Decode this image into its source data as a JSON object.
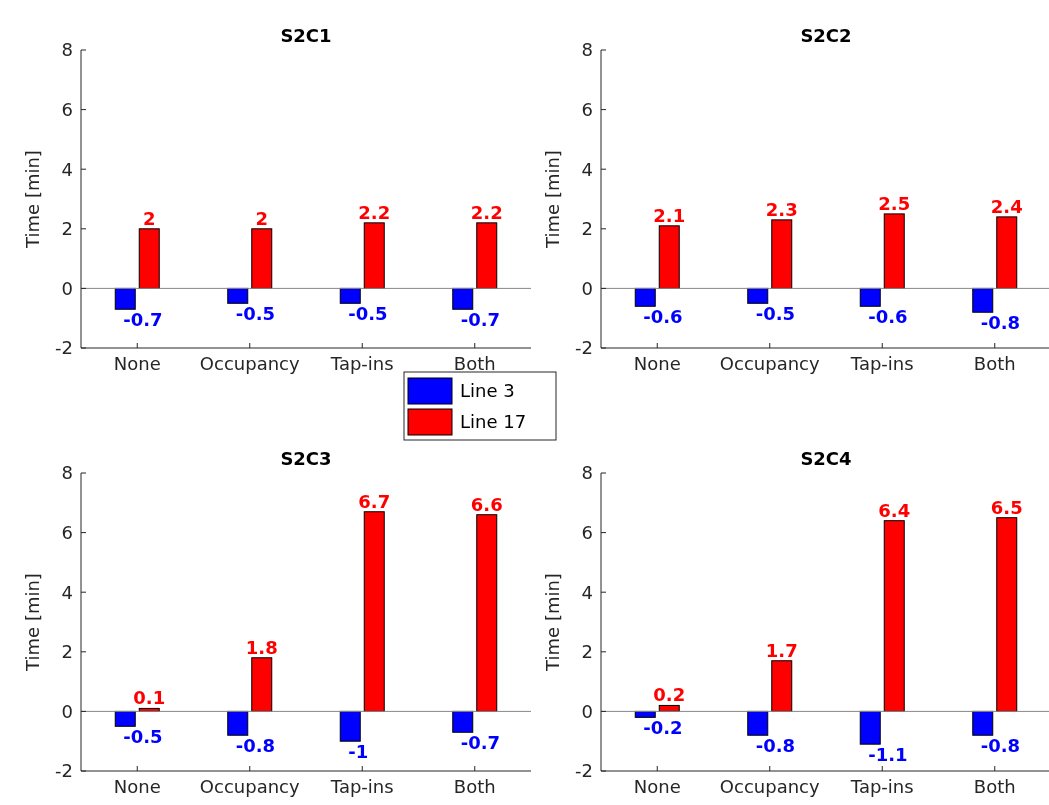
{
  "chart_data": [
    {
      "type": "bar",
      "title": "S2C1",
      "ylabel": "Time [min]",
      "categories": [
        "None",
        "Occupancy",
        "Tap-ins",
        "Both"
      ],
      "series": [
        {
          "name": "Line 3",
          "color": "#0000ff",
          "values": [
            -0.7,
            -0.5,
            -0.5,
            -0.7
          ]
        },
        {
          "name": "Line 17",
          "color": "#ff0000",
          "values": [
            2,
            2,
            2.2,
            2.2
          ]
        }
      ],
      "ylim": [
        -2,
        8
      ],
      "yticks": [
        -2,
        0,
        2,
        4,
        6,
        8
      ],
      "data_labels": true,
      "legend": "bottom right"
    },
    {
      "type": "bar",
      "title": "S2C2",
      "ylabel": "Time [min]",
      "categories": [
        "None",
        "Occupancy",
        "Tap-ins",
        "Both"
      ],
      "series": [
        {
          "color": "#0000ff",
          "values": [
            -0.6,
            -0.5,
            -0.6,
            -0.8
          ]
        },
        {
          "color": "#ff0000",
          "values": [
            2.1,
            2.3,
            2.5,
            2.4
          ]
        }
      ],
      "ylim": [
        -2,
        8
      ],
      "yticks": [
        -2,
        0,
        2,
        4,
        6,
        8
      ],
      "data_labels": true
    },
    {
      "type": "bar",
      "title": "S2C3",
      "ylabel": "Time [min]",
      "categories": [
        "None",
        "Occupancy",
        "Tap-ins",
        "Both"
      ],
      "series": [
        {
          "color": "#0000ff",
          "values": [
            -0.5,
            -0.8,
            -1,
            -0.7
          ]
        },
        {
          "color": "#ff0000",
          "values": [
            0.1,
            1.8,
            6.7,
            6.6
          ]
        }
      ],
      "ylim": [
        -2,
        8
      ],
      "yticks": [
        -2,
        0,
        2,
        4,
        6,
        8
      ],
      "data_labels": true
    },
    {
      "type": "bar",
      "title": "S2C4",
      "ylabel": "Time [min]",
      "categories": [
        "None",
        "Occupancy",
        "Tap-ins",
        "Both"
      ],
      "series": [
        {
          "color": "#0000ff",
          "values": [
            -0.2,
            -0.8,
            -1.1,
            -0.8
          ]
        },
        {
          "color": "#ff0000",
          "values": [
            0.2,
            1.7,
            6.4,
            6.5
          ]
        }
      ],
      "ylim": [
        -2,
        8
      ],
      "yticks": [
        -2,
        0,
        2,
        4,
        6,
        8
      ],
      "data_labels": true
    }
  ]
}
